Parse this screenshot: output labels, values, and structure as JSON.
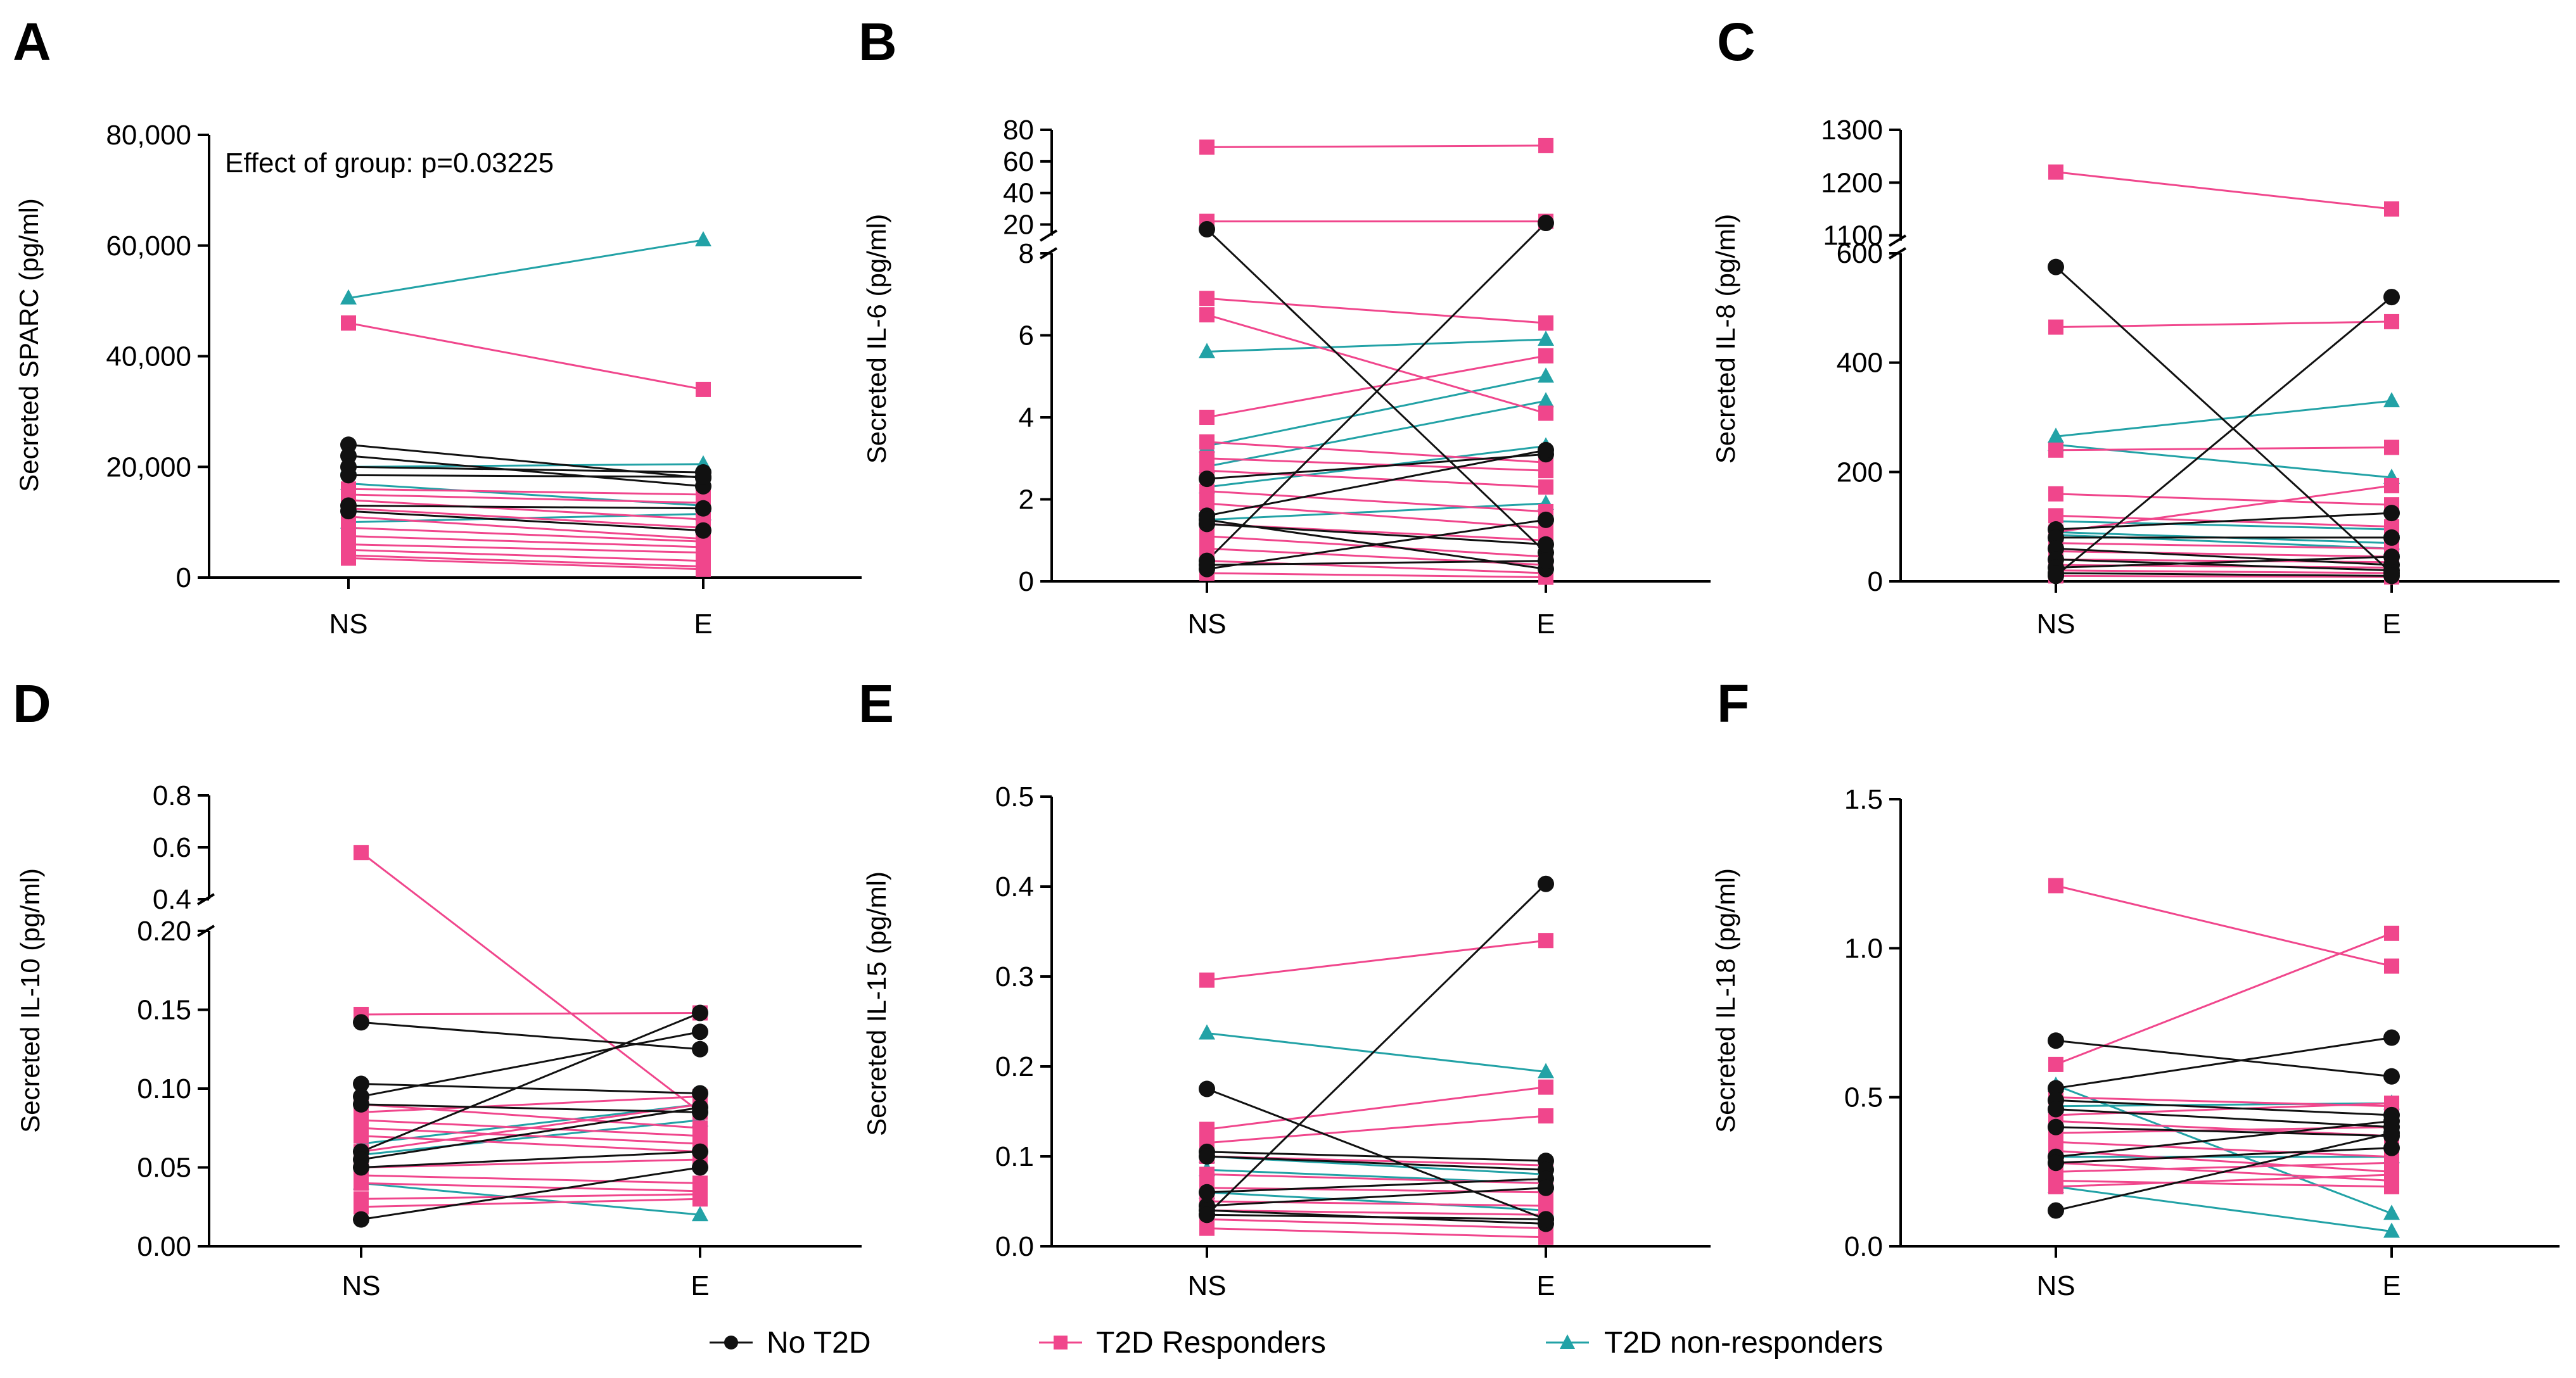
{
  "colors": {
    "no_t2d": "#111111",
    "responders": "#f0468c",
    "non_responders": "#22a2a6",
    "axis": "#000000"
  },
  "legend": [
    {
      "label": "No T2D",
      "group": "no_t2d",
      "marker": "circle"
    },
    {
      "label": "T2D Responders",
      "group": "responders",
      "marker": "square"
    },
    {
      "label": "T2D non-responders",
      "group": "non_responders",
      "marker": "triangle"
    }
  ],
  "chart_data": [
    {
      "panel": "A",
      "type": "line",
      "categories": [
        "NS",
        "E"
      ],
      "ylabel": "Secreted SPARC (pg/ml)",
      "annotation": "Effect of group: p=0.03225",
      "ylim": [
        0,
        80000
      ],
      "ticks": [
        {
          "v": 0,
          "label": "0"
        },
        {
          "v": 20000,
          "label": "20,000"
        },
        {
          "v": 40000,
          "label": "40,000"
        },
        {
          "v": 60000,
          "label": "60,000"
        },
        {
          "v": 80000,
          "label": "80,000"
        }
      ],
      "series": [
        {
          "group": "no_t2d",
          "pairs": [
            [
              24000,
              18000
            ],
            [
              22000,
              16500
            ],
            [
              20000,
              19000
            ],
            [
              18500,
              18200
            ],
            [
              13000,
              12500
            ],
            [
              12000,
              8500
            ]
          ]
        },
        {
          "group": "responders",
          "pairs": [
            [
              46000,
              34000
            ],
            [
              16000,
              15000
            ],
            [
              15000,
              13500
            ],
            [
              14000,
              10500
            ],
            [
              12500,
              9000
            ],
            [
              11000,
              7000
            ],
            [
              9000,
              6500
            ],
            [
              7500,
              5500
            ],
            [
              6000,
              4500
            ],
            [
              5000,
              3000
            ],
            [
              4000,
              2000
            ],
            [
              3500,
              1500
            ]
          ]
        },
        {
          "group": "non_responders",
          "pairs": [
            [
              50500,
              61000
            ],
            [
              20000,
              20500
            ],
            [
              17000,
              13000
            ],
            [
              10000,
              11500
            ]
          ]
        }
      ]
    },
    {
      "panel": "B",
      "type": "line",
      "categories": [
        "NS",
        "E"
      ],
      "ylabel": "Secreted IL-6 (pg/ml)",
      "segments": [
        {
          "range": [
            0,
            8
          ],
          "ticks": [
            {
              "v": 0,
              "label": "0"
            },
            {
              "v": 2,
              "label": "2"
            },
            {
              "v": 4,
              "label": "4"
            },
            {
              "v": 6,
              "label": "6"
            },
            {
              "v": 8,
              "label": "8"
            }
          ]
        },
        {
          "range": [
            13,
            80
          ],
          "ticks": [
            {
              "v": 20,
              "label": "20"
            },
            {
              "v": 40,
              "label": "40"
            },
            {
              "v": 60,
              "label": "60"
            },
            {
              "v": 80,
              "label": "80"
            }
          ]
        }
      ],
      "series": [
        {
          "group": "no_t2d",
          "pairs": [
            [
              17,
              0.7
            ],
            [
              0.5,
              21
            ],
            [
              2.5,
              3.1
            ],
            [
              1.6,
              3.2
            ],
            [
              1.4,
              0.9
            ],
            [
              1.5,
              0.3
            ],
            [
              0.3,
              1.5
            ],
            [
              0.4,
              0.5
            ]
          ]
        },
        {
          "group": "responders",
          "pairs": [
            [
              69,
              70
            ],
            [
              22,
              22
            ],
            [
              6.9,
              6.3
            ],
            [
              6.5,
              4.1
            ],
            [
              4.0,
              5.5
            ],
            [
              3.4,
              2.9
            ],
            [
              3.0,
              2.7
            ],
            [
              2.7,
              2.3
            ],
            [
              2.2,
              1.7
            ],
            [
              1.9,
              1.3
            ],
            [
              1.4,
              1.0
            ],
            [
              1.1,
              0.6
            ],
            [
              0.8,
              0.4
            ],
            [
              0.5,
              0.2
            ],
            [
              0.2,
              0.1
            ]
          ]
        },
        {
          "group": "non_responders",
          "pairs": [
            [
              5.6,
              5.9
            ],
            [
              3.3,
              5.0
            ],
            [
              2.8,
              4.4
            ],
            [
              2.3,
              3.3
            ],
            [
              1.5,
              1.9
            ]
          ]
        }
      ]
    },
    {
      "panel": "C",
      "type": "line",
      "categories": [
        "NS",
        "E"
      ],
      "ylabel": "Secreted IL-8 (pg/ml)",
      "segments": [
        {
          "range": [
            0,
            600
          ],
          "ticks": [
            {
              "v": 0,
              "label": "0"
            },
            {
              "v": 200,
              "label": "200"
            },
            {
              "v": 400,
              "label": "400"
            },
            {
              "v": 600,
              "label": "600"
            }
          ]
        },
        {
          "range": [
            1090,
            1300
          ],
          "ticks": [
            {
              "v": 1100,
              "label": "1100"
            },
            {
              "v": 1200,
              "label": "1200"
            },
            {
              "v": 1300,
              "label": "1300"
            }
          ]
        }
      ],
      "series": [
        {
          "group": "no_t2d",
          "pairs": [
            [
              575,
              15
            ],
            [
              10,
              520
            ],
            [
              95,
              125
            ],
            [
              80,
              80
            ],
            [
              60,
              30
            ],
            [
              40,
              20
            ],
            [
              25,
              45
            ],
            [
              15,
              10
            ]
          ]
        },
        {
          "group": "responders",
          "pairs": [
            [
              1220,
              1150
            ],
            [
              465,
              475
            ],
            [
              240,
              245
            ],
            [
              160,
              140
            ],
            [
              120,
              100
            ],
            [
              90,
              175
            ],
            [
              70,
              60
            ],
            [
              55,
              45
            ],
            [
              40,
              35
            ],
            [
              30,
              25
            ],
            [
              20,
              15
            ],
            [
              10,
              8
            ]
          ]
        },
        {
          "group": "non_responders",
          "pairs": [
            [
              265,
              330
            ],
            [
              250,
              190
            ],
            [
              110,
              95
            ],
            [
              90,
              70
            ],
            [
              85,
              60
            ]
          ]
        }
      ]
    },
    {
      "panel": "D",
      "type": "line",
      "categories": [
        "NS",
        "E"
      ],
      "ylabel": "Secreted IL-10 (pg/ml)",
      "segments": [
        {
          "range": [
            0,
            0.2
          ],
          "ticks": [
            {
              "v": 0,
              "label": "0.00"
            },
            {
              "v": 0.05,
              "label": "0.05"
            },
            {
              "v": 0.1,
              "label": "0.10"
            },
            {
              "v": 0.15,
              "label": "0.15"
            },
            {
              "v": 0.2,
              "label": "0.20"
            }
          ]
        },
        {
          "range": [
            0.4,
            0.8
          ],
          "ticks": [
            {
              "v": 0.4,
              "label": "0.4"
            },
            {
              "v": 0.6,
              "label": "0.6"
            },
            {
              "v": 0.8,
              "label": "0.8"
            }
          ]
        }
      ],
      "series": [
        {
          "group": "no_t2d",
          "pairs": [
            [
              0.142,
              0.125
            ],
            [
              0.103,
              0.097
            ],
            [
              0.095,
              0.136
            ],
            [
              0.09,
              0.085
            ],
            [
              0.06,
              0.148
            ],
            [
              0.055,
              0.088
            ],
            [
              0.05,
              0.06
            ],
            [
              0.017,
              0.05
            ]
          ]
        },
        {
          "group": "responders",
          "pairs": [
            [
              0.58,
              0.085
            ],
            [
              0.147,
              0.148
            ],
            [
              0.09,
              0.075
            ],
            [
              0.085,
              0.095
            ],
            [
              0.08,
              0.07
            ],
            [
              0.075,
              0.065
            ],
            [
              0.07,
              0.06
            ],
            [
              0.06,
              0.09
            ],
            [
              0.05,
              0.055
            ],
            [
              0.045,
              0.04
            ],
            [
              0.04,
              0.035
            ],
            [
              0.03,
              0.033
            ],
            [
              0.025,
              0.03
            ]
          ]
        },
        {
          "group": "non_responders",
          "pairs": [
            [
              0.065,
              0.09
            ],
            [
              0.058,
              0.08
            ],
            [
              0.04,
              0.02
            ]
          ]
        }
      ]
    },
    {
      "panel": "E",
      "type": "line",
      "categories": [
        "NS",
        "E"
      ],
      "ylabel": "Secreted IL-15 (pg/ml)",
      "ylim": [
        0,
        0.5
      ],
      "ticks": [
        {
          "v": 0,
          "label": "0.0"
        },
        {
          "v": 0.1,
          "label": "0.1"
        },
        {
          "v": 0.2,
          "label": "0.2"
        },
        {
          "v": 0.3,
          "label": "0.3"
        },
        {
          "v": 0.4,
          "label": "0.4"
        },
        {
          "v": 0.5,
          "label": "0.5"
        }
      ],
      "series": [
        {
          "group": "no_t2d",
          "pairs": [
            [
              0.175,
              0.03
            ],
            [
              0.035,
              0.403
            ],
            [
              0.105,
              0.095
            ],
            [
              0.1,
              0.085
            ],
            [
              0.06,
              0.075
            ],
            [
              0.045,
              0.065
            ],
            [
              0.04,
              0.025
            ],
            [
              0.035,
              0.03
            ]
          ]
        },
        {
          "group": "responders",
          "pairs": [
            [
              0.296,
              0.34
            ],
            [
              0.13,
              0.177
            ],
            [
              0.115,
              0.145
            ],
            [
              0.1,
              0.09
            ],
            [
              0.08,
              0.07
            ],
            [
              0.065,
              0.06
            ],
            [
              0.05,
              0.045
            ],
            [
              0.04,
              0.035
            ],
            [
              0.03,
              0.02
            ],
            [
              0.02,
              0.01
            ]
          ]
        },
        {
          "group": "non_responders",
          "pairs": [
            [
              0.237,
              0.194
            ],
            [
              0.1,
              0.08
            ],
            [
              0.085,
              0.07
            ],
            [
              0.06,
              0.04
            ]
          ]
        }
      ]
    },
    {
      "panel": "F",
      "type": "line",
      "categories": [
        "NS",
        "E"
      ],
      "ylabel": "Secreted IL-18 (pg/ml)",
      "ylim": [
        0,
        1.5
      ],
      "ticks": [
        {
          "v": 0,
          "label": "0.0"
        },
        {
          "v": 0.5,
          "label": "0.5"
        },
        {
          "v": 1.0,
          "label": "1.0"
        },
        {
          "v": 1.5,
          "label": "1.5"
        }
      ],
      "series": [
        {
          "group": "no_t2d",
          "pairs": [
            [
              0.69,
              0.57
            ],
            [
              0.53,
              0.7
            ],
            [
              0.49,
              0.44
            ],
            [
              0.46,
              0.4
            ],
            [
              0.4,
              0.37
            ],
            [
              0.3,
              0.42
            ],
            [
              0.28,
              0.33
            ],
            [
              0.12,
              0.38
            ]
          ]
        },
        {
          "group": "responders",
          "pairs": [
            [
              1.21,
              0.94
            ],
            [
              0.61,
              1.05
            ],
            [
              0.5,
              0.47
            ],
            [
              0.44,
              0.48
            ],
            [
              0.42,
              0.37
            ],
            [
              0.38,
              0.4
            ],
            [
              0.35,
              0.3
            ],
            [
              0.32,
              0.25
            ],
            [
              0.28,
              0.22
            ],
            [
              0.25,
              0.28
            ],
            [
              0.22,
              0.2
            ],
            [
              0.2,
              0.24
            ]
          ]
        },
        {
          "group": "non_responders",
          "pairs": [
            [
              0.54,
              0.11
            ],
            [
              0.47,
              0.48
            ],
            [
              0.3,
              0.3
            ],
            [
              0.2,
              0.05
            ]
          ]
        }
      ]
    }
  ]
}
